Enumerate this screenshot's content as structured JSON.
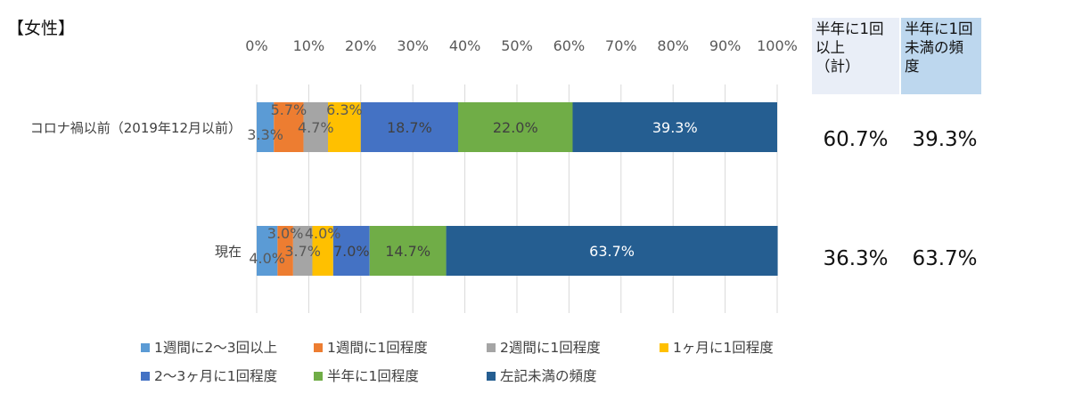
{
  "chart_data": {
    "type": "bar",
    "orientation": "horizontal",
    "stacked": "percent",
    "title": "【女性】",
    "categories": [
      "コロナ禍以前（2019年12月以前）",
      "現在"
    ],
    "xlim": [
      0,
      100
    ],
    "x_ticks": [
      "0%",
      "10%",
      "20%",
      "30%",
      "40%",
      "50%",
      "60%",
      "70%",
      "80%",
      "90%",
      "100%"
    ],
    "grid": true,
    "legend_position": "bottom",
    "series": [
      {
        "name": "1週間に2～3回以上",
        "color": "#5b9bd5",
        "label_color": "#595959",
        "values": [
          3.3,
          4.0
        ],
        "labels": [
          "3.3%",
          "4.0%"
        ]
      },
      {
        "name": "1週間に1回程度",
        "color": "#ed7d31",
        "label_color": "#595959",
        "values": [
          5.7,
          3.0
        ],
        "labels": [
          "5.7%",
          "3.0%"
        ]
      },
      {
        "name": "2週間に1回程度",
        "color": "#a5a5a5",
        "label_color": "#595959",
        "values": [
          4.7,
          3.7
        ],
        "labels": [
          "4.7%",
          "3.7%"
        ]
      },
      {
        "name": "1ヶ月に1回程度",
        "color": "#ffc000",
        "label_color": "#595959",
        "values": [
          6.3,
          4.0
        ],
        "labels": [
          "6.3%",
          "4.0%"
        ]
      },
      {
        "name": "2～3ヶ月に1回程度",
        "color": "#4472c4",
        "label_color": "#404040",
        "values": [
          18.7,
          7.0
        ],
        "labels": [
          "18.7%",
          "7.0%"
        ]
      },
      {
        "name": "半年に1回程度",
        "color": "#70ad47",
        "label_color": "#404040",
        "values": [
          22.0,
          14.7
        ],
        "labels": [
          "22.0%",
          "14.7%"
        ]
      },
      {
        "name": "左記未満の頻度",
        "color": "#255e91",
        "label_color": "#ffffff",
        "values": [
          39.3,
          63.7
        ],
        "labels": [
          "39.3%",
          "63.7%"
        ]
      }
    ]
  },
  "summary": {
    "col1_header": "半年に1回\n以上\n（計）",
    "col2_header": "半年に1回\n未満の頻\n度",
    "rows": [
      {
        "col1": "60.7%",
        "col2": "39.3%"
      },
      {
        "col1": "36.3%",
        "col2": "63.7%"
      }
    ]
  }
}
